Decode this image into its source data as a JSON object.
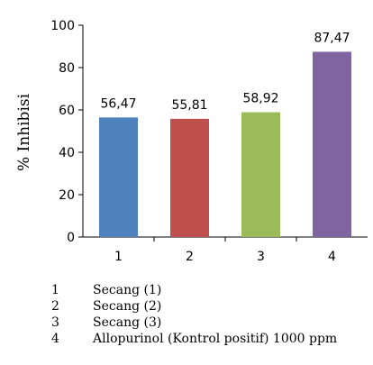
{
  "chart_data": {
    "type": "bar",
    "title": "",
    "xlabel": "",
    "ylabel": "% Inhibisi",
    "categories": [
      "1",
      "2",
      "3",
      "4"
    ],
    "values": [
      56.47,
      55.81,
      58.92,
      87.47
    ],
    "value_labels": [
      "56,47",
      "55,81",
      "58,92",
      "87,47"
    ],
    "colors": [
      "#4f81bd",
      "#c0504d",
      "#9bbb59",
      "#8064a2"
    ],
    "ylim": [
      0,
      100
    ],
    "yticks": [
      "0",
      "20",
      "40",
      "60",
      "80",
      "100"
    ],
    "grid": false
  },
  "legend": [
    {
      "num": "1",
      "label": "Secang (1)"
    },
    {
      "num": "2",
      "label": "Secang (2)"
    },
    {
      "num": "3",
      "label": "Secang (3)"
    },
    {
      "num": "4",
      "label": "Allopurinol (Kontrol positif) 1000 ppm"
    }
  ]
}
